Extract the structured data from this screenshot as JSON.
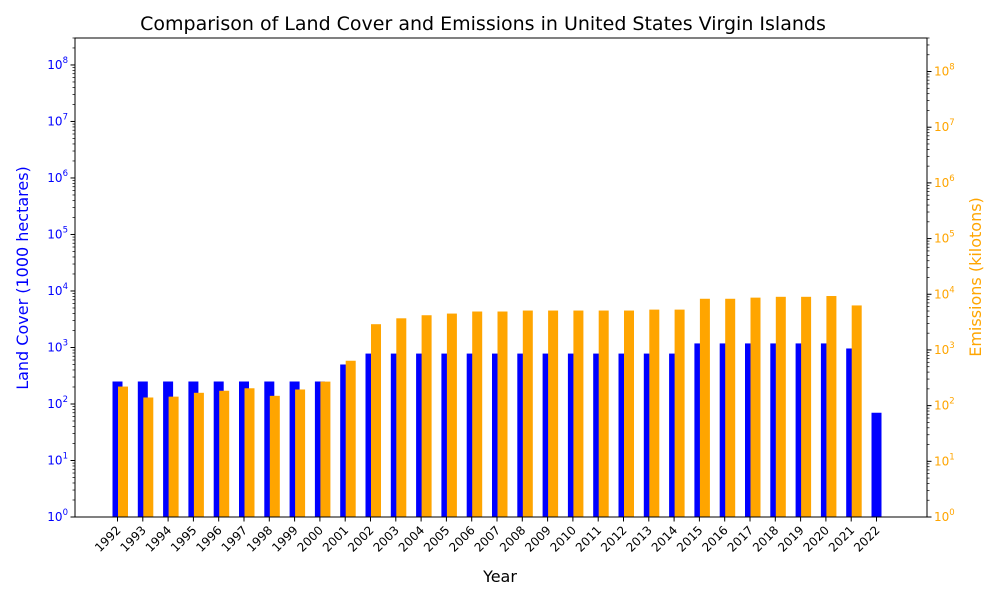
{
  "chart_data": {
    "type": "bar",
    "title": "Comparison of Land Cover and Emissions in United States Virgin Islands",
    "xlabel": "Year",
    "ylabel_left": "Land Cover (1000 hectares)",
    "ylabel_right": "Emissions (kilotons)",
    "scale": "log",
    "left_axis": {
      "range": [
        1,
        300000000
      ],
      "ticks": [
        "10^0",
        "10^1",
        "10^2",
        "10^3",
        "10^4",
        "10^5",
        "10^6",
        "10^7",
        "10^8"
      ],
      "color": "#0000ff"
    },
    "right_axis": {
      "range": [
        1,
        400000000
      ],
      "ticks": [
        "10^0",
        "10^1",
        "10^2",
        "10^3",
        "10^4",
        "10^5",
        "10^6",
        "10^7",
        "10^8"
      ],
      "color": "#ffa500"
    },
    "categories": [
      "1992",
      "1993",
      "1994",
      "1995",
      "1996",
      "1997",
      "1998",
      "1999",
      "2000",
      "2001",
      "2002",
      "2003",
      "2004",
      "2005",
      "2006",
      "2007",
      "2008",
      "2009",
      "2010",
      "2011",
      "2012",
      "2013",
      "2014",
      "2015",
      "2016",
      "2017",
      "2018",
      "2019",
      "2020",
      "2021",
      "2022"
    ],
    "series": [
      {
        "name": "Land Cover (1000 hectares)",
        "color": "#0000ff",
        "axis": "left",
        "values": [
          250,
          250,
          250,
          250,
          250,
          250,
          250,
          250,
          250,
          500,
          780,
          780,
          780,
          780,
          780,
          780,
          780,
          780,
          780,
          780,
          780,
          780,
          780,
          1180,
          1180,
          1180,
          1180,
          1180,
          1180,
          960,
          70
        ]
      },
      {
        "name": "Emissions (kilotons)",
        "color": "#ffa500",
        "axis": "right",
        "values": [
          220,
          140,
          145,
          170,
          185,
          205,
          150,
          195,
          270,
          640,
          2900,
          3700,
          4200,
          4500,
          4900,
          4900,
          5100,
          5100,
          5100,
          5100,
          5100,
          5300,
          5300,
          8300,
          8300,
          8700,
          9000,
          9000,
          9300,
          6300,
          null
        ]
      }
    ],
    "grid": false,
    "legend": "none"
  }
}
